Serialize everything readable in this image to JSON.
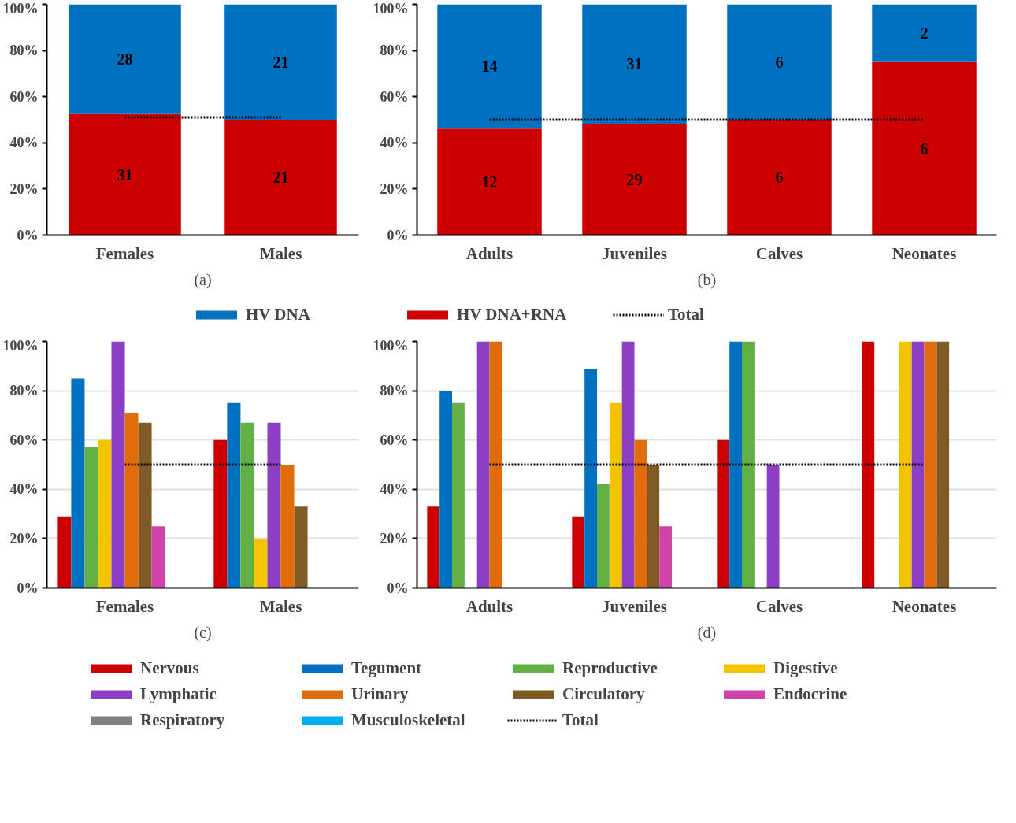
{
  "chart_data": [
    {
      "type": "bar",
      "stacked": true,
      "categories": [
        "Females",
        "Males"
      ],
      "ylim": [
        0,
        100
      ],
      "yticks": [
        {
          "value": 0,
          "label": "0%"
        },
        {
          "value": 20,
          "label": "20%"
        },
        {
          "value": 40,
          "label": "40%"
        },
        {
          "value": 60,
          "label": "60%"
        },
        {
          "value": 80,
          "label": "80%"
        },
        {
          "value": 100,
          "label": "100%"
        }
      ],
      "annotations": [
        "(a)",
        "31",
        "21",
        "28",
        "21"
      ],
      "series": [
        {
          "color": "#cc0000",
          "values": [
            52.5,
            50
          ]
        },
        {
          "color": "#0070c0",
          "values": [
            47.5,
            50
          ]
        },
        {
          "type": "line",
          "color": "#000000",
          "line_style": "dotted",
          "values": [
            51,
            51
          ]
        }
      ]
    },
    {
      "type": "bar",
      "stacked": true,
      "categories": [
        "Adults",
        "Juveniles",
        "Calves",
        "Neonates"
      ],
      "ylim": [
        0,
        100
      ],
      "yticks": [
        {
          "value": 0,
          "label": "0%"
        },
        {
          "value": 20,
          "label": "20%"
        },
        {
          "value": 40,
          "label": "40%"
        },
        {
          "value": 60,
          "label": "60%"
        },
        {
          "value": 80,
          "label": "80%"
        },
        {
          "value": 100,
          "label": "100%"
        }
      ],
      "legend": "bottom",
      "annotations": [
        "(b)",
        "12",
        "29",
        "6",
        "6",
        "14",
        "31",
        "6",
        "2"
      ],
      "series": [
        {
          "name": "HV DNA+RNA",
          "color": "#cc0000",
          "values": [
            46.2,
            48.3,
            50,
            75
          ]
        },
        {
          "name": "HV DNA",
          "color": "#0070c0",
          "values": [
            53.8,
            51.7,
            50,
            25
          ]
        },
        {
          "name": "Total",
          "type": "line",
          "color": "#000000",
          "line_style": "dotted",
          "values": [
            50,
            50,
            50,
            50
          ]
        }
      ]
    },
    {
      "type": "bar",
      "categories": [
        "Females",
        "Males"
      ],
      "ylim": [
        0,
        100
      ],
      "yticks": [
        {
          "value": 0,
          "label": "0%"
        },
        {
          "value": 20,
          "label": "20%"
        },
        {
          "value": 40,
          "label": "40%"
        },
        {
          "value": 60,
          "label": "60%"
        },
        {
          "value": 80,
          "label": "80%"
        },
        {
          "value": 100,
          "label": "100%"
        }
      ],
      "grid": "y",
      "annotations": [
        "(c)"
      ],
      "series": [
        {
          "color": "#cc0000",
          "values": [
            29,
            60
          ]
        },
        {
          "color": "#0070c0",
          "values": [
            85,
            75
          ]
        },
        {
          "color": "#62b044",
          "values": [
            57,
            67
          ]
        },
        {
          "color": "#f2c500",
          "values": [
            60,
            20
          ]
        },
        {
          "color": "#8b3fc4",
          "values": [
            100,
            67
          ]
        },
        {
          "color": "#e36c0a",
          "values": [
            71,
            50
          ]
        },
        {
          "color": "#7f5a24",
          "values": [
            67,
            33
          ]
        },
        {
          "color": "#d043a8",
          "values": [
            25,
            null
          ]
        },
        {
          "color": "#808080",
          "values": [
            null,
            null
          ]
        },
        {
          "color": "#00b0f0",
          "values": [
            null,
            null
          ]
        },
        {
          "type": "line",
          "color": "#000000",
          "line_style": "dotted",
          "values": [
            50,
            50
          ]
        }
      ]
    },
    {
      "type": "bar",
      "categories": [
        "Adults",
        "Juveniles",
        "Calves",
        "Neonates"
      ],
      "ylim": [
        0,
        100
      ],
      "yticks": [
        {
          "value": 0,
          "label": "0%"
        },
        {
          "value": 20,
          "label": "20%"
        },
        {
          "value": 40,
          "label": "40%"
        },
        {
          "value": 60,
          "label": "60%"
        },
        {
          "value": 80,
          "label": "80%"
        },
        {
          "value": 100,
          "label": "100%"
        }
      ],
      "grid": "y",
      "legend": "bottom",
      "annotations": [
        "(d)"
      ],
      "series": [
        {
          "name": "Nervous",
          "color": "#cc0000",
          "values": [
            33,
            29,
            60,
            100
          ]
        },
        {
          "name": "Tegument",
          "color": "#0070c0",
          "values": [
            80,
            89,
            100,
            null
          ]
        },
        {
          "name": "Reproductive",
          "color": "#62b044",
          "values": [
            75,
            42,
            100,
            null
          ]
        },
        {
          "name": "Digestive",
          "color": "#f2c500",
          "values": [
            null,
            75,
            null,
            100
          ]
        },
        {
          "name": "Lymphatic",
          "color": "#8b3fc4",
          "values": [
            100,
            100,
            50,
            100
          ]
        },
        {
          "name": "Urinary",
          "color": "#e36c0a",
          "values": [
            100,
            60,
            null,
            100
          ]
        },
        {
          "name": "Circulatory",
          "color": "#7f5a24",
          "values": [
            null,
            50,
            null,
            100
          ]
        },
        {
          "name": "Endocrine",
          "color": "#d043a8",
          "values": [
            null,
            25,
            null,
            null
          ]
        },
        {
          "name": "Respiratory",
          "color": "#808080",
          "values": [
            null,
            null,
            null,
            null
          ]
        },
        {
          "name": "Musculoskeletal",
          "color": "#00b0f0",
          "values": [
            null,
            null,
            null,
            null
          ]
        },
        {
          "name": "Total",
          "type": "line",
          "color": "#000000",
          "line_style": "dotted",
          "values": [
            50,
            50,
            50,
            50
          ]
        }
      ]
    }
  ]
}
